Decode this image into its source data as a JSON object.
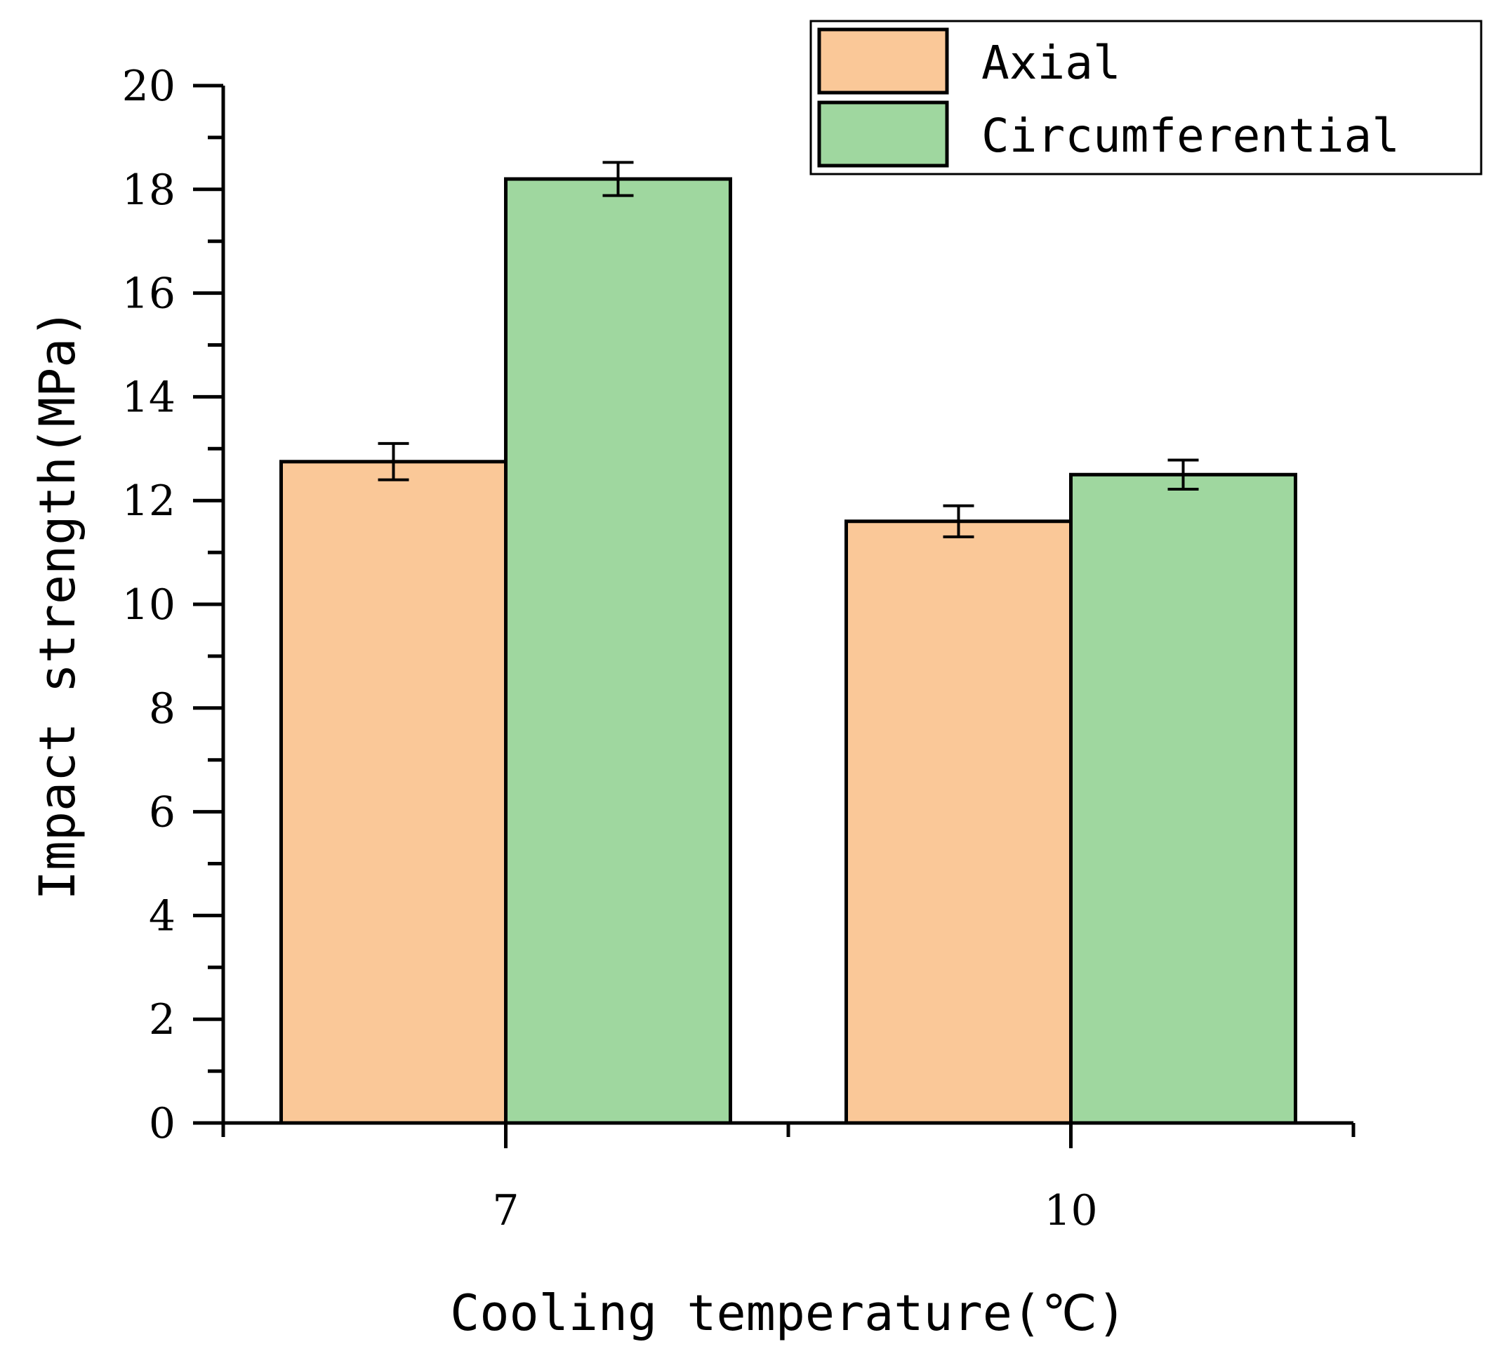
{
  "chart_data": {
    "type": "bar",
    "title": "",
    "xlabel": "Cooling temperature(℃)",
    "ylabel": "Impact strength(MPa)",
    "categories": [
      "7",
      "10"
    ],
    "ylim": [
      0,
      20
    ],
    "yticks": [
      0,
      2,
      4,
      6,
      8,
      10,
      12,
      14,
      16,
      18,
      20
    ],
    "ytick_labels": [
      "0",
      "2",
      "4",
      "6",
      "8",
      "10",
      "12",
      "14",
      "16",
      "18",
      "20"
    ],
    "legend_position": "top-right",
    "series": [
      {
        "name": "Axial",
        "color": "#FAC898",
        "values": [
          12.75,
          11.6
        ],
        "errors": [
          0.35,
          0.3
        ]
      },
      {
        "name": "Circumferential",
        "color": "#9FD79F",
        "values": [
          18.2,
          12.5
        ],
        "errors": [
          0.32,
          0.28
        ]
      }
    ]
  }
}
